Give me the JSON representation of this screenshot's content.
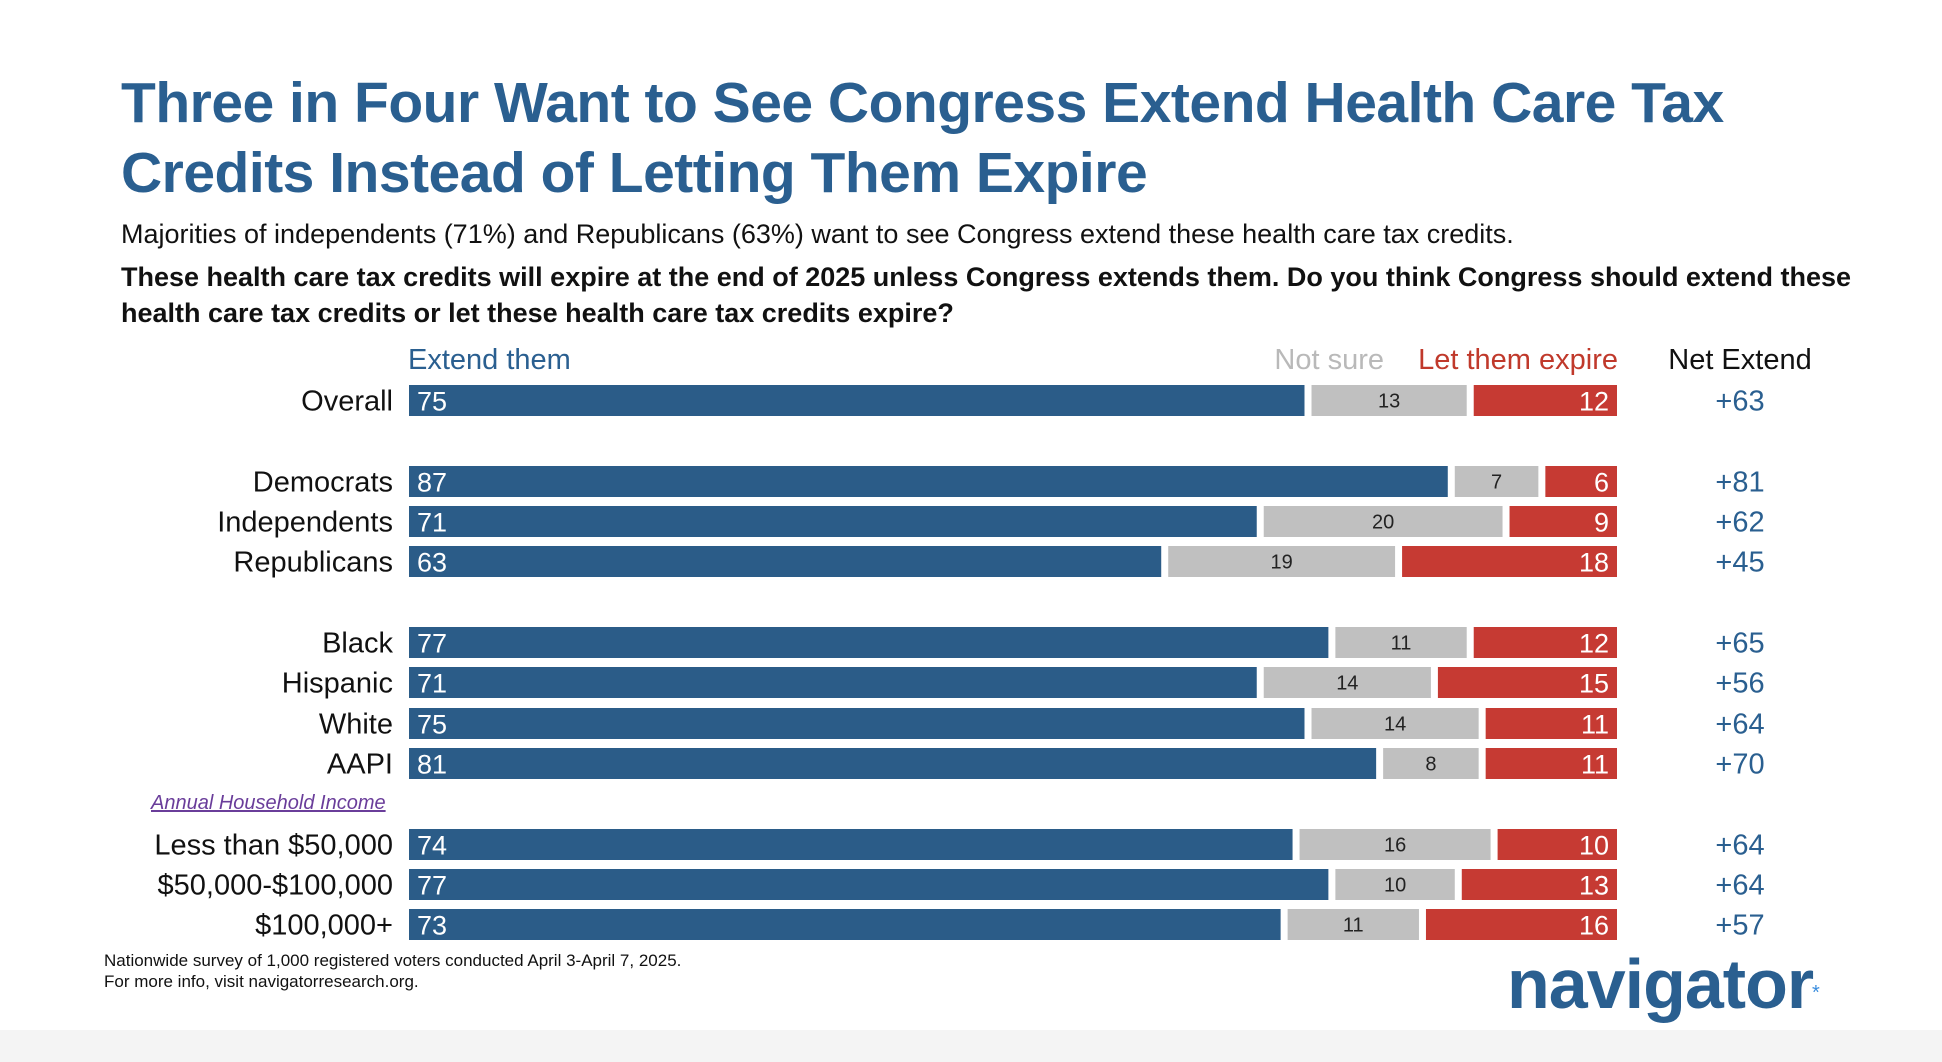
{
  "title": "Three in Four Want to See Congress Extend Health Care Tax Credits Instead of Letting Them Expire",
  "subtitle": "Majorities of independents (71%) and Republicans (63%) want to see Congress extend these health care tax credits.",
  "question": "These health care tax credits will expire at the end of 2025 unless Congress extends them. Do you think Congress should extend these health care tax credits or let these health care tax credits expire?",
  "headers": {
    "extend": "Extend them",
    "not_sure": "Not sure",
    "expire": "Let them expire",
    "net": "Net Extend"
  },
  "section_label": "Annual Household Income",
  "footnote": {
    "line1": "Nationwide survey of 1,000 registered voters conducted April 3-April 7, 2025.",
    "line2": "For more info, visit navigatorresearch.org."
  },
  "logo": {
    "text": "navigator",
    "star": "*"
  },
  "colors": {
    "extend": "#2b5c88",
    "not_sure": "#c0c0c0",
    "expire": "#c63a33",
    "net_text": "#2a5f90",
    "title": "#2a5f90"
  },
  "chart_data": {
    "type": "bar",
    "orientation": "horizontal",
    "stacked": true,
    "categories": [
      "Overall",
      "Democrats",
      "Independents",
      "Republicans",
      "Black",
      "Hispanic",
      "White",
      "AAPI",
      "Less than $50,000",
      "$50,000-$100,000",
      "$100,000+"
    ],
    "series": [
      {
        "name": "Extend them",
        "values": [
          75,
          87,
          71,
          63,
          77,
          71,
          75,
          81,
          74,
          77,
          73
        ]
      },
      {
        "name": "Not sure",
        "values": [
          13,
          7,
          20,
          19,
          11,
          14,
          14,
          8,
          16,
          10,
          11
        ]
      },
      {
        "name": "Let them expire",
        "values": [
          12,
          6,
          9,
          18,
          12,
          15,
          11,
          11,
          10,
          13,
          16
        ]
      }
    ],
    "net_extend": [
      "+63",
      "+81",
      "+62",
      "+45",
      "+65",
      "+56",
      "+64",
      "+70",
      "+64",
      "+64",
      "+57"
    ],
    "xlim": [
      0,
      100
    ]
  }
}
